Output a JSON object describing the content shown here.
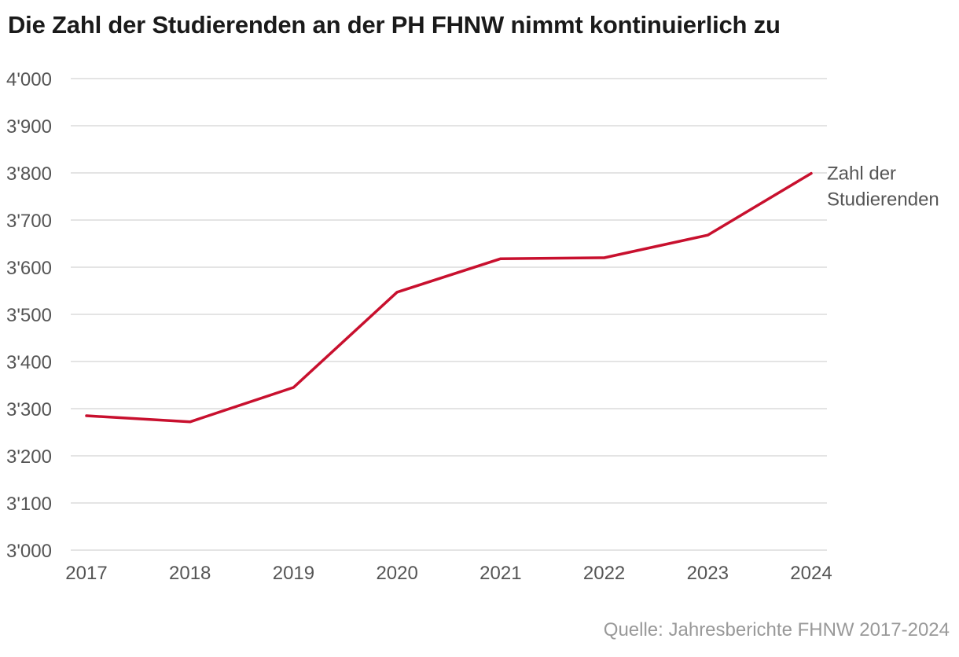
{
  "title": "Die Zahl der Studierenden an der PH FHNW nimmt kontinuierlich zu",
  "source": "Quelle: Jahresberichte FHNW 2017-2024",
  "colors": {
    "line": "#c8102e",
    "grid": "#dcdcdc",
    "text": "#555555",
    "source": "#999999"
  },
  "chart_data": {
    "type": "line",
    "title": "Die Zahl der Studierenden an der PH FHNW nimmt kontinuierlich zu",
    "x": [
      "2017",
      "2018",
      "2019",
      "2020",
      "2021",
      "2022",
      "2023",
      "2024"
    ],
    "series": [
      {
        "name": "Zahl der Studierenden",
        "name_lines": [
          "Zahl der",
          "Studierenden"
        ],
        "values": [
          3285,
          3272,
          3345,
          3547,
          3618,
          3620,
          3668,
          3799
        ]
      }
    ],
    "ylim": [
      3000,
      4000
    ],
    "yticks": [
      3000,
      3100,
      3200,
      3300,
      3400,
      3500,
      3600,
      3700,
      3800,
      3900,
      4000
    ],
    "ytick_labels": [
      "3'000",
      "3'100",
      "3'200",
      "3'300",
      "3'400",
      "3'500",
      "3'600",
      "3'700",
      "3'800",
      "3'900",
      "4'000"
    ],
    "grid": true,
    "legend": "label at line end"
  }
}
